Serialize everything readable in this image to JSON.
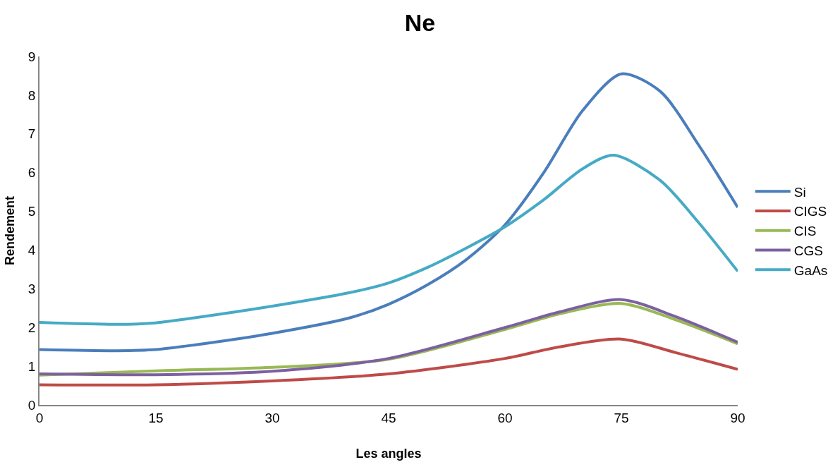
{
  "chart_data": {
    "type": "line",
    "title": "Ne",
    "xlabel": "Les angles",
    "ylabel": "Rendement",
    "xlim": [
      0,
      90
    ],
    "xticks": [
      0,
      15,
      30,
      45,
      60,
      75,
      90
    ],
    "ylim": [
      0,
      9
    ],
    "yticks": [
      0,
      1,
      2,
      3,
      4,
      5,
      6,
      7,
      8,
      9
    ],
    "grid": false,
    "legend": "right",
    "marker": "none",
    "line_style": "solid",
    "series": [
      {
        "name": "Si",
        "color": "#4a7ebb",
        "x": [
          0,
          10,
          15,
          20,
          30,
          40,
          45,
          50,
          55,
          60,
          65,
          70,
          75,
          80,
          85,
          90
        ],
        "values": [
          1.43,
          1.4,
          1.43,
          1.55,
          1.85,
          2.25,
          2.6,
          3.1,
          3.75,
          4.65,
          6.0,
          7.6,
          8.55,
          8.1,
          6.7,
          5.1
        ]
      },
      {
        "name": "CIGS",
        "color": "#be4b48",
        "x": [
          0,
          15,
          30,
          45,
          60,
          67,
          75,
          82,
          90
        ],
        "values": [
          0.52,
          0.52,
          0.62,
          0.8,
          1.2,
          1.5,
          1.7,
          1.35,
          0.92
        ]
      },
      {
        "name": "CIS",
        "color": "#98b954",
        "x": [
          0,
          15,
          30,
          45,
          60,
          67,
          75,
          82,
          90
        ],
        "values": [
          0.77,
          0.88,
          0.97,
          1.18,
          1.95,
          2.35,
          2.62,
          2.2,
          1.58
        ]
      },
      {
        "name": "CGS",
        "color": "#7d60a0",
        "x": [
          0,
          15,
          30,
          45,
          60,
          67,
          75,
          82,
          90
        ],
        "values": [
          0.8,
          0.78,
          0.87,
          1.2,
          2.0,
          2.4,
          2.72,
          2.28,
          1.62
        ]
      },
      {
        "name": "GaAs",
        "color": "#46aac5",
        "x": [
          0,
          10,
          15,
          20,
          30,
          40,
          45,
          50,
          55,
          60,
          65,
          70,
          74,
          80,
          85,
          90
        ],
        "values": [
          2.13,
          2.08,
          2.12,
          2.25,
          2.55,
          2.9,
          3.15,
          3.55,
          4.05,
          4.6,
          5.3,
          6.1,
          6.45,
          5.8,
          4.7,
          3.45
        ]
      }
    ]
  }
}
